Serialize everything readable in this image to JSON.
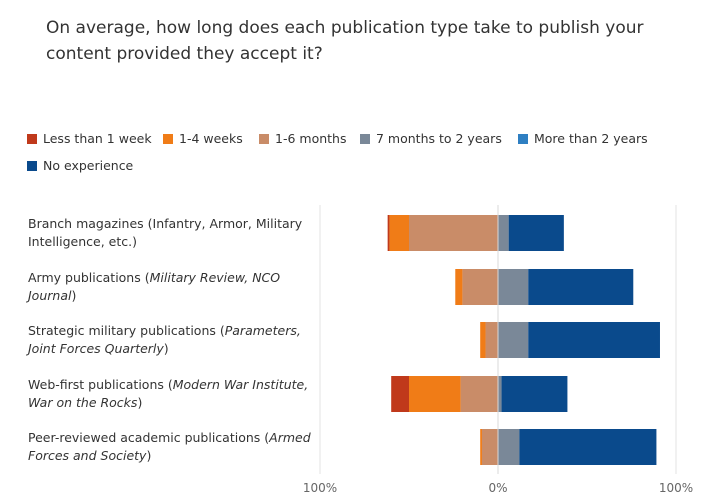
{
  "title": "On average, how long does each publication type take to publish your content provided they accept it?",
  "chart_data": {
    "type": "bar",
    "orientation": "horizontal",
    "stacked": "diverging",
    "xlim": [
      -100,
      100
    ],
    "x_ticks": [
      "100%",
      "0%",
      "100%"
    ],
    "legend": [
      {
        "name": "Less than 1 week",
        "color": "#c0391b",
        "side": "left"
      },
      {
        "name": "1-4 weeks",
        "color": "#f07c17",
        "side": "left"
      },
      {
        "name": "1-6 months",
        "color": "#c98c68",
        "side": "left"
      },
      {
        "name": "7 months to 2 years",
        "color": "#7a8898",
        "side": "right"
      },
      {
        "name": "More than 2 years",
        "color": "#2e7fc2",
        "side": "right"
      },
      {
        "name": "No experience",
        "color": "#0a4a8c",
        "side": "right"
      }
    ],
    "categories": [
      {
        "label": [
          {
            "t": "Branch magazines (Infantry, Armor, Military Intelligence, etc.)",
            "i": false
          }
        ]
      },
      {
        "label": [
          {
            "t": "Army publications (",
            "i": false
          },
          {
            "t": "Military Review, NCO Journal",
            "i": true
          },
          {
            "t": ")",
            "i": false
          }
        ]
      },
      {
        "label": [
          {
            "t": "Strategic military publications (",
            "i": false
          },
          {
            "t": "Parameters, Joint Forces Quarterly",
            "i": true
          },
          {
            "t": ")",
            "i": false
          }
        ]
      },
      {
        "label": [
          {
            "t": "Web-first publications (",
            "i": false
          },
          {
            "t": "Modern War Institute, War on the Rocks",
            "i": true
          },
          {
            "t": ")",
            "i": false
          }
        ]
      },
      {
        "label": [
          {
            "t": "Peer-reviewed academic publications (",
            "i": false
          },
          {
            "t": "Armed Forces and Society",
            "i": true
          },
          {
            "t": ")",
            "i": false
          }
        ]
      }
    ],
    "series": [
      {
        "name": "Less than 1 week",
        "values": [
          1,
          0,
          0,
          10,
          0
        ]
      },
      {
        "name": "1-4 weeks",
        "values": [
          11,
          4,
          3,
          29,
          1
        ]
      },
      {
        "name": "1-6 months",
        "values": [
          50,
          20,
          7,
          21,
          9
        ]
      },
      {
        "name": "7 months to 2 years",
        "values": [
          6,
          17,
          17,
          2,
          12
        ]
      },
      {
        "name": "More than 2 years",
        "values": [
          0,
          0,
          0,
          0,
          0
        ]
      },
      {
        "name": "No experience",
        "values": [
          31,
          59,
          74,
          37,
          77
        ]
      }
    ]
  }
}
